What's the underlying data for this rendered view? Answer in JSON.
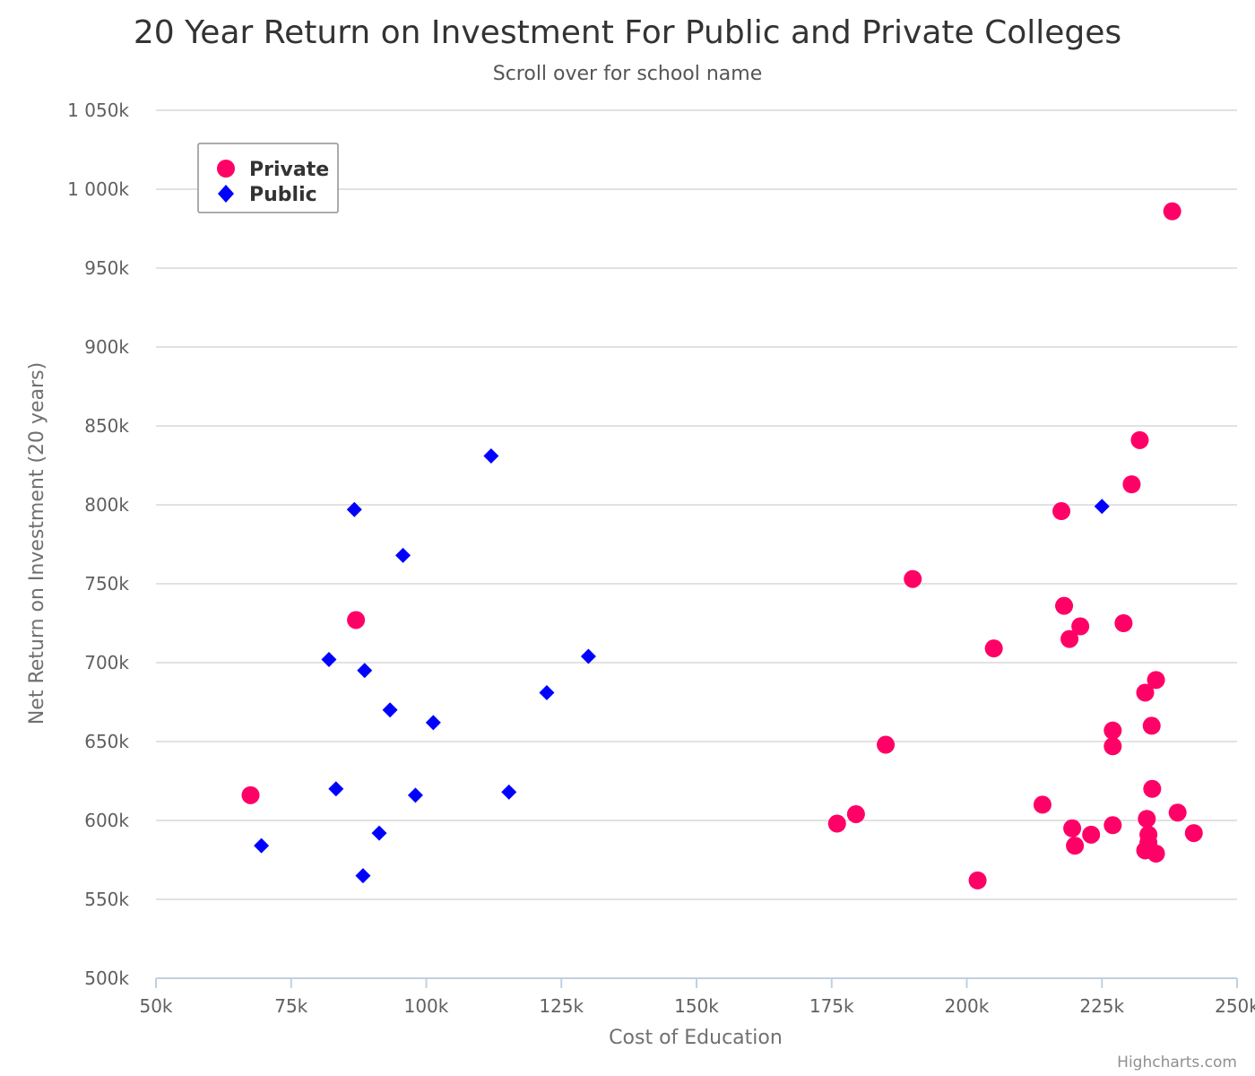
{
  "chart_data": {
    "type": "scatter",
    "title": "20 Year Return on Investment For Public and Private Colleges",
    "subtitle": "Scroll over for school name",
    "xlabel": "Cost of Education",
    "ylabel": "Net Return on Investment (20 years)",
    "xlim": [
      50000,
      250000
    ],
    "ylim": [
      500000,
      1050000
    ],
    "x_ticks": [
      50000,
      75000,
      100000,
      125000,
      150000,
      175000,
      200000,
      225000,
      250000
    ],
    "x_tick_labels": [
      "50k",
      "75k",
      "100k",
      "125k",
      "150k",
      "175k",
      "200k",
      "225k",
      "250k"
    ],
    "y_ticks": [
      500000,
      550000,
      600000,
      650000,
      700000,
      750000,
      800000,
      850000,
      900000,
      950000,
      1000000,
      1050000
    ],
    "y_tick_labels": [
      "500k",
      "550k",
      "600k",
      "650k",
      "700k",
      "750k",
      "800k",
      "850k",
      "900k",
      "950k",
      "1 000k",
      "1 050k"
    ],
    "grid": "horizontal",
    "legend_position": "top-left",
    "credits": "Highcharts.com",
    "series": [
      {
        "name": "Private",
        "color": "#ff0066",
        "marker": "circle",
        "points": [
          [
            67500,
            616000
          ],
          [
            87000,
            727000
          ],
          [
            176000,
            598000
          ],
          [
            179500,
            604000
          ],
          [
            185000,
            648000
          ],
          [
            190000,
            753000
          ],
          [
            202000,
            562000
          ],
          [
            205000,
            709000
          ],
          [
            214000,
            610000
          ],
          [
            217500,
            796000
          ],
          [
            218000,
            736000
          ],
          [
            219000,
            715000
          ],
          [
            219500,
            595000
          ],
          [
            220000,
            584000
          ],
          [
            221000,
            723000
          ],
          [
            223000,
            591000
          ],
          [
            227000,
            657000
          ],
          [
            227000,
            647000
          ],
          [
            227000,
            597000
          ],
          [
            229000,
            725000
          ],
          [
            230500,
            813000
          ],
          [
            232000,
            841000
          ],
          [
            233000,
            681000
          ],
          [
            233000,
            581000
          ],
          [
            233300,
            601000
          ],
          [
            233600,
            591000
          ],
          [
            233600,
            586000
          ],
          [
            234200,
            660000
          ],
          [
            234300,
            620000
          ],
          [
            235000,
            689000
          ],
          [
            235000,
            579000
          ],
          [
            238000,
            986000
          ],
          [
            239000,
            605000
          ],
          [
            242000,
            592000
          ]
        ]
      },
      {
        "name": "Public",
        "color": "#0000ff",
        "marker": "diamond",
        "points": [
          [
            69500,
            584000
          ],
          [
            82000,
            702000
          ],
          [
            83300,
            620000
          ],
          [
            86700,
            797000
          ],
          [
            88300,
            565000
          ],
          [
            88600,
            695000
          ],
          [
            91300,
            592000
          ],
          [
            93300,
            670000
          ],
          [
            95700,
            768000
          ],
          [
            98000,
            616000
          ],
          [
            101300,
            662000
          ],
          [
            112000,
            831000
          ],
          [
            115300,
            618000
          ],
          [
            122300,
            681000
          ],
          [
            130000,
            704000
          ],
          [
            225000,
            799000
          ]
        ]
      }
    ]
  }
}
